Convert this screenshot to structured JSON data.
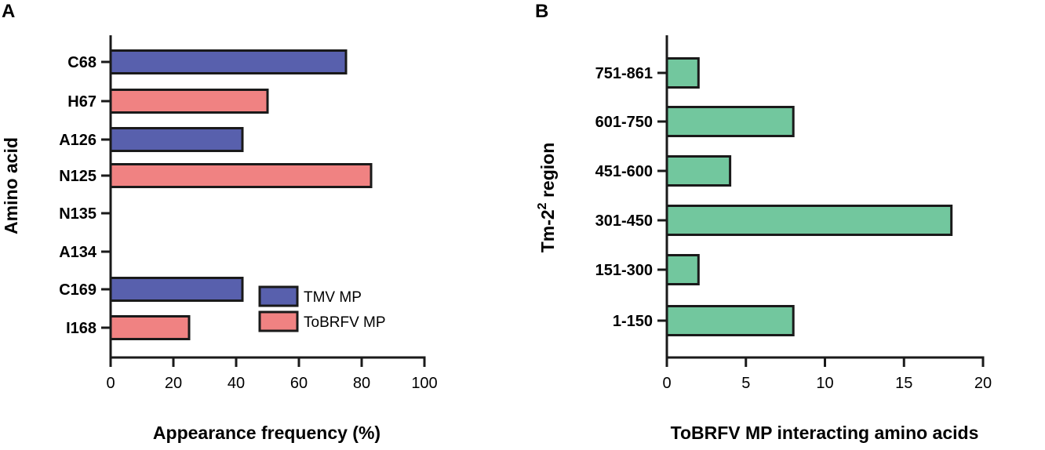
{
  "chart_data": [
    {
      "panel": "A",
      "type": "bar",
      "orientation": "horizontal",
      "categories": [
        "C68",
        "H67",
        "A126",
        "N125",
        "N135",
        "A134",
        "C169",
        "I168"
      ],
      "series": [
        {
          "name": "TMV MP",
          "color": "#5860ad",
          "values": [
            75,
            null,
            42,
            null,
            null,
            null,
            42,
            null
          ]
        },
        {
          "name": "ToBRFV MP",
          "color": "#f08282",
          "values": [
            null,
            50,
            null,
            83,
            null,
            null,
            null,
            25
          ]
        }
      ],
      "xlabel": "Appearance frequency (%)",
      "ylabel": "Amino acid",
      "xlim": [
        0,
        100
      ],
      "xticks": [
        0,
        20,
        40,
        60,
        80,
        100
      ],
      "legend": "bottom-right"
    },
    {
      "panel": "B",
      "type": "bar",
      "orientation": "horizontal",
      "categories": [
        "751-861",
        "601-750",
        "451-600",
        "301-450",
        "151-300",
        "1-150"
      ],
      "series": [
        {
          "name": "ToBRFV MP interacting amino acids",
          "color": "#72c79e",
          "values": [
            2,
            8,
            4,
            18,
            2,
            8
          ]
        }
      ],
      "xlabel": "ToBRFV MP interacting amino acids",
      "ylabel_parts": {
        "base": "Tm-2",
        "superscript": "2",
        "suffix": " region"
      },
      "xlim": [
        0,
        20
      ],
      "xticks": [
        0,
        5,
        10,
        15,
        20
      ]
    }
  ]
}
